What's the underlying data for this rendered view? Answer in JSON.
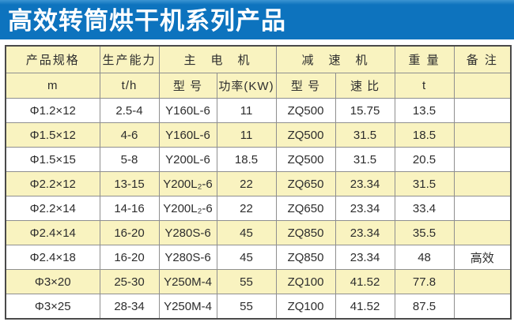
{
  "title": "高效转筒烘干机系列产品",
  "colors": {
    "title_bg": "#0d73be",
    "title_text": "#ffffff",
    "header_bg": "#f9f3c0",
    "row_stripe_bg": "#f9f3c0",
    "row_bg": "#ffffff",
    "outer_border": "#4a4a4a",
    "inner_border": "#8f8f8f",
    "cell_text": "#2d2d2d"
  },
  "table": {
    "header_row1": {
      "product_spec": "产品规格",
      "capacity": "生产能力",
      "main_motor": "主　电　机",
      "reducer": "减　速　机",
      "weight": "重 量",
      "remark": "备 注"
    },
    "header_row2": {
      "spec_unit": "m",
      "capacity_unit": "t/h",
      "motor_model": "型 号",
      "motor_power": "功率(KW)",
      "reducer_model": "型 号",
      "speed_ratio": "速 比",
      "weight_unit": "t",
      "remark": ""
    },
    "column_keys": [
      "spec",
      "capacity",
      "motor_model",
      "motor_power",
      "reducer_model",
      "speed_ratio",
      "weight",
      "remark"
    ],
    "rows": [
      {
        "spec": "Φ1.2×12",
        "capacity": "2.5-4",
        "motor_model": "Y160L-6",
        "motor_power": "11",
        "reducer_model": "ZQ500",
        "speed_ratio": "15.75",
        "weight": "13.5",
        "remark": ""
      },
      {
        "spec": "Φ1.5×12",
        "capacity": "4-6",
        "motor_model": "Y160L-6",
        "motor_power": "11",
        "reducer_model": "ZQ500",
        "speed_ratio": "31.5",
        "weight": "18.5",
        "remark": ""
      },
      {
        "spec": "Φ1.5×15",
        "capacity": "5-8",
        "motor_model": "Y200L-6",
        "motor_power": "18.5",
        "reducer_model": "ZQ500",
        "speed_ratio": "31.5",
        "weight": "20.5",
        "remark": ""
      },
      {
        "spec": "Φ2.2×12",
        "capacity": "13-15",
        "motor_model": "Y200L₂-6",
        "motor_power": "22",
        "reducer_model": "ZQ650",
        "speed_ratio": "23.34",
        "weight": "31.5",
        "remark": ""
      },
      {
        "spec": "Φ2.2×14",
        "capacity": "14-16",
        "motor_model": "Y200L₂-6",
        "motor_power": "22",
        "reducer_model": "ZQ650",
        "speed_ratio": "23.34",
        "weight": "33.4",
        "remark": ""
      },
      {
        "spec": "Φ2.4×14",
        "capacity": "16-20",
        "motor_model": "Y280S-6",
        "motor_power": "45",
        "reducer_model": "ZQ850",
        "speed_ratio": "23.34",
        "weight": "35.5",
        "remark": ""
      },
      {
        "spec": "Φ2.4×18",
        "capacity": "16-20",
        "motor_model": "Y280S-6",
        "motor_power": "45",
        "reducer_model": "ZQ850",
        "speed_ratio": "23.34",
        "weight": "48",
        "remark": "高效"
      },
      {
        "spec": "Φ3×20",
        "capacity": "25-30",
        "motor_model": "Y250M-4",
        "motor_power": "55",
        "reducer_model": "ZQ100",
        "speed_ratio": "41.52",
        "weight": "77.8",
        "remark": ""
      },
      {
        "spec": "Φ3×25",
        "capacity": "28-34",
        "motor_model": "Y250M-4",
        "motor_power": "55",
        "reducer_model": "ZQ100",
        "speed_ratio": "41.52",
        "weight": "87.5",
        "remark": ""
      }
    ]
  }
}
